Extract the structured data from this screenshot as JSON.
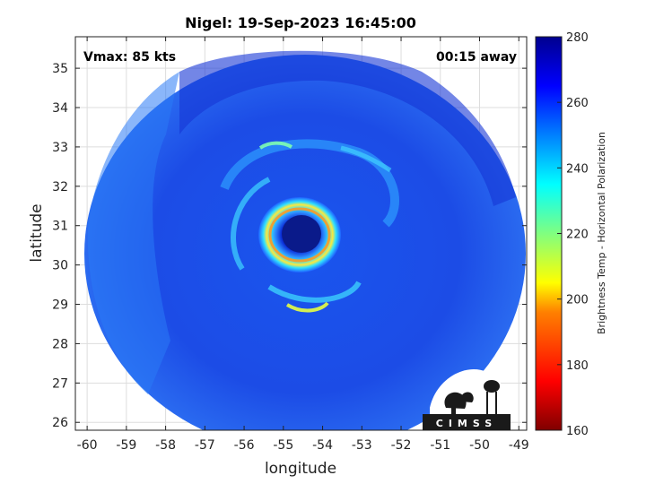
{
  "chart_data": {
    "type": "heatmap",
    "title": "Nigel: 19-Sep-2023 16:45:00",
    "xlabel": "longitude",
    "ylabel": "latitude",
    "xlim": [
      -60.3,
      -48.8
    ],
    "ylim": [
      25.8,
      35.8
    ],
    "x_ticks": [
      "-60",
      "-59",
      "-58",
      "-57",
      "-56",
      "-55",
      "-54",
      "-53",
      "-52",
      "-51",
      "-50",
      "-49"
    ],
    "x_tick_values": [
      -60,
      -59,
      -58,
      -57,
      -56,
      -55,
      -54,
      -53,
      -52,
      -51,
      -50,
      -49
    ],
    "y_ticks": [
      "26",
      "27",
      "28",
      "29",
      "30",
      "31",
      "32",
      "33",
      "34",
      "35"
    ],
    "y_tick_values": [
      26,
      27,
      28,
      29,
      30,
      31,
      32,
      33,
      34,
      35
    ],
    "grid": true,
    "annotations": {
      "left": "Vmax: 85 kts",
      "right": "00:15 away"
    },
    "storm_center": {
      "lon": -54.6,
      "lat": 30.9
    },
    "colorbar": {
      "label": "Brightness Temp - Horizontal Polarization",
      "range": [
        160,
        280
      ],
      "ticks": [
        "280",
        "260",
        "240",
        "220",
        "200",
        "180",
        "160"
      ],
      "tick_values": [
        280,
        260,
        240,
        220,
        200,
        180,
        160
      ]
    },
    "colormap": [
      "#800000",
      "#ff0000",
      "#ff8000",
      "#ffff00",
      "#80ff80",
      "#00ffff",
      "#0080ff",
      "#0000ff",
      "#00008f"
    ]
  },
  "logo": {
    "text": "CIMSS"
  }
}
